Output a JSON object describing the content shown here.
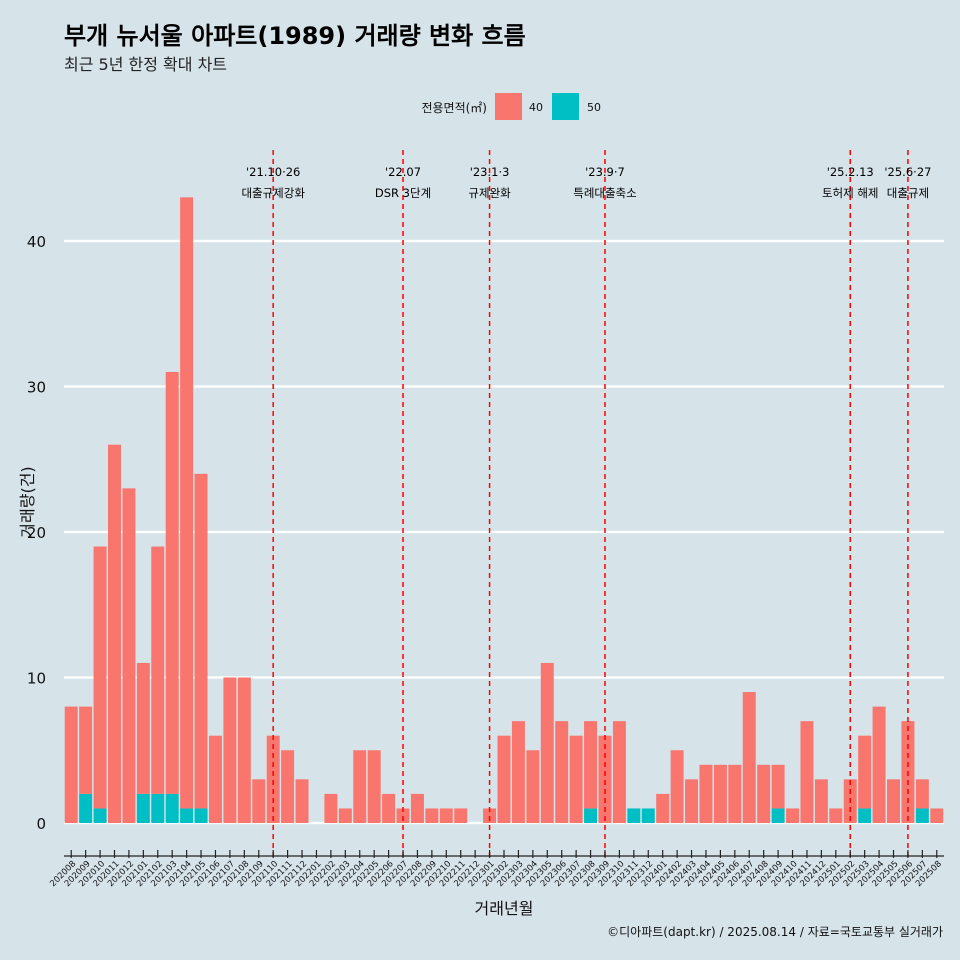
{
  "header": {
    "title": "부개 뉴서울 아파트(1989) 거래량 변화 흐름",
    "subtitle": "최근 5년 한정 확대 차트",
    "caption": "©디아파트(dapt.kr) / 2025.08.14 / 자료=국토교통부 실거래가"
  },
  "colors": {
    "background": "#d6e4ea",
    "series_40": "#f8766d",
    "series_50": "#00bfc4",
    "annotation_line": "#ff0000",
    "grid": "#ffffff"
  },
  "chart_data": {
    "type": "bar",
    "xlabel": "거래년월",
    "ylabel": "거래량(건)",
    "ylim": [
      0,
      42
    ],
    "yticks": [
      0,
      10,
      20,
      30,
      40
    ],
    "grid": true,
    "legend": {
      "title": "전용면적(㎡)",
      "position": "top"
    },
    "categories": [
      "202008",
      "202009",
      "202010",
      "202011",
      "202012",
      "202101",
      "202102",
      "202103",
      "202104",
      "202105",
      "202106",
      "202107",
      "202108",
      "202109",
      "202110",
      "202111",
      "202112",
      "202201",
      "202202",
      "202203",
      "202204",
      "202205",
      "202206",
      "202207",
      "202208",
      "202209",
      "202210",
      "202211",
      "202212",
      "202301",
      "202302",
      "202303",
      "202304",
      "202305",
      "202306",
      "202307",
      "202308",
      "202309",
      "202310",
      "202311",
      "202312",
      "202401",
      "202402",
      "202403",
      "202404",
      "202405",
      "202406",
      "202407",
      "202408",
      "202409",
      "202410",
      "202411",
      "202412",
      "202501",
      "202502",
      "202503",
      "202504",
      "202505",
      "202506",
      "202507",
      "202508"
    ],
    "series": [
      {
        "name": "40",
        "color": "#f8766d",
        "values": [
          8,
          6,
          18,
          26,
          23,
          9,
          17,
          29,
          42,
          23,
          6,
          10,
          10,
          3,
          6,
          5,
          3,
          0,
          2,
          1,
          5,
          5,
          2,
          1,
          2,
          1,
          1,
          1,
          0,
          1,
          6,
          7,
          5,
          11,
          7,
          6,
          6,
          6,
          7,
          0,
          0,
          2,
          5,
          3,
          4,
          4,
          4,
          9,
          4,
          3,
          1,
          7,
          3,
          1,
          3,
          5,
          8,
          3,
          7,
          2,
          1
        ]
      },
      {
        "name": "50",
        "color": "#00bfc4",
        "values": [
          0,
          2,
          1,
          0,
          0,
          2,
          2,
          2,
          1,
          1,
          0,
          0,
          0,
          0,
          0,
          0,
          0,
          0,
          0,
          0,
          0,
          0,
          0,
          0,
          0,
          0,
          0,
          0,
          0,
          0,
          0,
          0,
          0,
          0,
          0,
          0,
          1,
          0,
          0,
          1,
          1,
          0,
          0,
          0,
          0,
          0,
          0,
          0,
          0,
          1,
          0,
          0,
          0,
          0,
          0,
          1,
          0,
          0,
          0,
          1,
          0
        ]
      }
    ],
    "annotations": [
      {
        "category": "202110",
        "date": "'21.10·26",
        "label": "대출규제강화"
      },
      {
        "category": "202207",
        "date": "'22.07",
        "label": "DSR 3단계"
      },
      {
        "category": "202301",
        "date": "'23.1·3",
        "label": "규제완화"
      },
      {
        "category": "202309",
        "date": "'23.9·7",
        "label": "특례대출축소"
      },
      {
        "category": "202502",
        "date": "'25.2.13",
        "label": "토허제 해제"
      },
      {
        "category": "202506",
        "date": "'25.6·27",
        "label": "대출규제"
      }
    ]
  }
}
